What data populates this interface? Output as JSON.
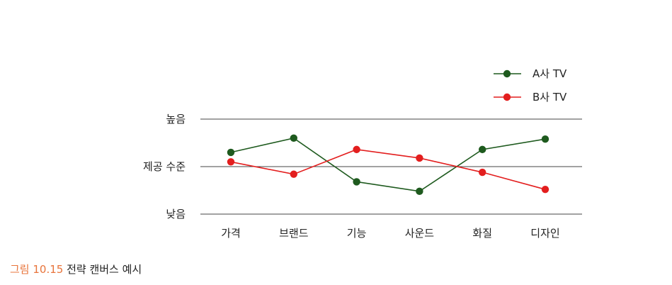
{
  "chart_data": {
    "type": "line",
    "categories": [
      "가격",
      "브랜드",
      "기능",
      "사운드",
      "화질",
      "디자인"
    ],
    "y_tick_labels": [
      "낮음",
      "제공 수준",
      "높음"
    ],
    "ylabel": "",
    "xlabel": "",
    "ylim": [
      0,
      1
    ],
    "grid": true,
    "legend_position": "top-right",
    "series": [
      {
        "name": "A사 TV",
        "color": "#1e5a1e",
        "values": [
          0.65,
          0.8,
          0.34,
          0.24,
          0.68,
          0.79
        ]
      },
      {
        "name": "B사 TV",
        "color": "#e31e1e",
        "values": [
          0.55,
          0.42,
          0.68,
          0.59,
          0.44,
          0.26
        ]
      }
    ]
  },
  "caption": {
    "figure_number": "그림 10.15",
    "text": "전략 캔버스 예시"
  }
}
